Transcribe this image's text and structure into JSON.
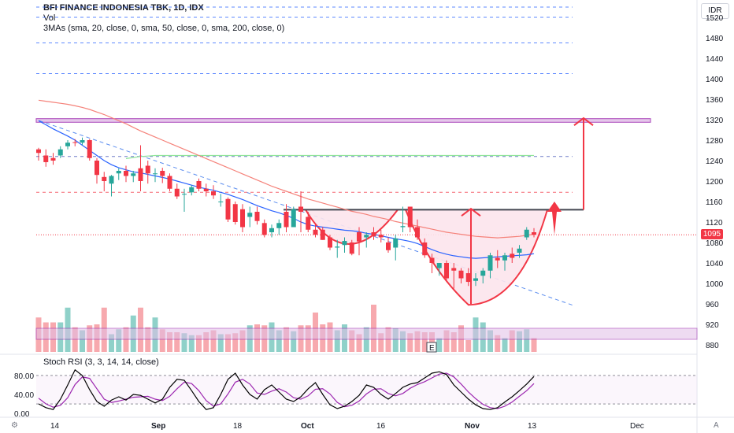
{
  "header": {
    "symbol_line": "BFI FINANCE INDONESIA TBK, 1D, IDX",
    "volume_label": "Vol",
    "mas_label": "3MAs (sma, 20, close, 0, sma, 50, close, 0, sma, 200, close, 0)"
  },
  "currency_badge": "IDR",
  "last_price_label": "1095",
  "earnings_marker": "E",
  "rsi": {
    "title": "Stoch RSI (3, 3, 14, 14, close)",
    "ticks": [
      "80.00",
      "40.00",
      "0.00"
    ]
  },
  "corner_icons": {
    "left": "icon-settings",
    "right": "auto-scale-icon"
  },
  "corner_labels": {
    "left": "",
    "right": "A"
  },
  "chart_data": {
    "type": "candlestick",
    "y_ticks": [
      1520,
      1480,
      1440,
      1400,
      1360,
      1320,
      1280,
      1240,
      1200,
      1160,
      1120,
      1080,
      1040,
      1000,
      960,
      920,
      880
    ],
    "ylim": [
      870,
      1530
    ],
    "x_labels": [
      "14",
      "Sep",
      "18",
      "Oct",
      "16",
      "Nov",
      "13",
      "Dec"
    ],
    "x_label_bold": [
      "Sep",
      "Oct",
      "Nov"
    ],
    "colors": {
      "up": "#26a69a",
      "down": "#f23645",
      "vol_up": "#8fd1c9",
      "vol_down": "#f7a9ae",
      "ma20": "#2962ff",
      "ma50": "#f5827a",
      "ma200": "#90e59a",
      "rsi_k": "#000000",
      "rsi_d": "#9c27b0"
    },
    "candles_ohlc": [
      [
        1262,
        1265,
        1240,
        1255
      ],
      [
        1250,
        1262,
        1228,
        1237
      ],
      [
        1245,
        1255,
        1232,
        1240
      ],
      [
        1250,
        1268,
        1245,
        1262
      ],
      [
        1268,
        1280,
        1262,
        1275
      ],
      [
        1276,
        1282,
        1268,
        1275
      ],
      [
        1275,
        1285,
        1270,
        1280
      ],
      [
        1280,
        1282,
        1240,
        1245
      ],
      [
        1240,
        1245,
        1195,
        1212
      ],
      [
        1208,
        1218,
        1180,
        1200
      ],
      [
        1195,
        1212,
        1170,
        1210
      ],
      [
        1215,
        1225,
        1202,
        1220
      ],
      [
        1220,
        1230,
        1198,
        1210
      ],
      [
        1210,
        1220,
        1198,
        1215
      ],
      [
        1225,
        1270,
        1180,
        1200
      ],
      [
        1230,
        1240,
        1195,
        1215
      ],
      [
        1215,
        1225,
        1198,
        1215
      ],
      [
        1220,
        1226,
        1196,
        1210
      ],
      [
        1210,
        1215,
        1180,
        1185
      ],
      [
        1185,
        1195,
        1165,
        1170
      ],
      [
        1175,
        1185,
        1140,
        1175
      ],
      [
        1178,
        1192,
        1172,
        1188
      ],
      [
        1200,
        1205,
        1180,
        1185
      ],
      [
        1185,
        1195,
        1170,
        1180
      ],
      [
        1180,
        1192,
        1165,
        1172
      ],
      [
        1160,
        1175,
        1150,
        1160
      ],
      [
        1165,
        1168,
        1120,
        1125
      ],
      [
        1155,
        1160,
        1115,
        1120
      ],
      [
        1145,
        1155,
        1100,
        1110
      ],
      [
        1130,
        1150,
        1110,
        1138
      ],
      [
        1140,
        1150,
        1115,
        1122
      ],
      [
        1118,
        1125,
        1090,
        1095
      ],
      [
        1100,
        1115,
        1090,
        1108
      ],
      [
        1108,
        1125,
        1095,
        1118
      ],
      [
        1140,
        1155,
        1100,
        1110
      ],
      [
        1110,
        1150,
        1110,
        1145
      ],
      [
        1150,
        1180,
        1100,
        1140
      ],
      [
        1130,
        1140,
        1100,
        1105
      ],
      [
        1105,
        1115,
        1090,
        1095
      ],
      [
        1105,
        1110,
        1085,
        1085
      ],
      [
        1090,
        1095,
        1065,
        1070
      ],
      [
        1070,
        1085,
        1050,
        1072
      ],
      [
        1075,
        1090,
        1060,
        1083
      ],
      [
        1080,
        1085,
        1055,
        1058
      ],
      [
        1100,
        1110,
        1055,
        1082
      ],
      [
        1090,
        1100,
        1070,
        1095
      ],
      [
        1100,
        1110,
        1085,
        1092
      ],
      [
        1095,
        1105,
        1080,
        1090
      ],
      [
        1080,
        1090,
        1060,
        1065
      ],
      [
        1070,
        1095,
        1045,
        1088
      ],
      [
        1110,
        1150,
        1100,
        1112
      ],
      [
        1150,
        1150,
        1100,
        1110
      ],
      [
        1110,
        1125,
        1085,
        1090
      ],
      [
        1080,
        1088,
        1050,
        1055
      ],
      [
        1050,
        1058,
        1020,
        1040
      ],
      [
        1030,
        1040,
        1015,
        1040
      ],
      [
        1040,
        1045,
        1005,
        1010
      ],
      [
        1030,
        1040,
        990,
        1025
      ],
      [
        1025,
        1030,
        1000,
        1010
      ],
      [
        1020,
        1030,
        995,
        1003
      ],
      [
        1005,
        1020,
        995,
        1010
      ],
      [
        1015,
        1030,
        1000,
        1025
      ],
      [
        1025,
        1060,
        1010,
        1055
      ],
      [
        1050,
        1065,
        1030,
        1045
      ],
      [
        1045,
        1060,
        1025,
        1055
      ],
      [
        1058,
        1070,
        1040,
        1050
      ],
      [
        1060,
        1075,
        1050,
        1068
      ],
      [
        1090,
        1110,
        1085,
        1105
      ],
      [
        1100,
        1108,
        1090,
        1095
      ]
    ],
    "volume": [
      35,
      30,
      30,
      30,
      45,
      25,
      22,
      27,
      28,
      45,
      18,
      23,
      25,
      37,
      45,
      25,
      35,
      23,
      20,
      20,
      19,
      17,
      17,
      20,
      22,
      18,
      18,
      19,
      22,
      27,
      28,
      27,
      30,
      22,
      25,
      21,
      27,
      27,
      40,
      28,
      30,
      22,
      28,
      22,
      18,
      25,
      48,
      19,
      25,
      24,
      21,
      19,
      21,
      20,
      20,
      14,
      22,
      20,
      27,
      12,
      35,
      30,
      22,
      17,
      14,
      22,
      21,
      23,
      14
    ],
    "ma20": [
      1318,
      1310,
      1302,
      1295,
      1288,
      1280,
      1270,
      1260,
      1250,
      1240,
      1232,
      1226,
      1222,
      1218,
      1216,
      1213,
      1210,
      1207,
      1204,
      1200,
      1196,
      1192,
      1188,
      1185,
      1182,
      1178,
      1174,
      1169,
      1164,
      1158,
      1152,
      1147,
      1142,
      1138,
      1133,
      1127,
      1120,
      1115,
      1112,
      1110,
      1108,
      1106,
      1104,
      1103,
      1101,
      1098,
      1096,
      1093,
      1090,
      1087,
      1085,
      1082,
      1078,
      1072,
      1066,
      1061,
      1057,
      1054,
      1052,
      1050,
      1049,
      1050,
      1051,
      1052,
      1053,
      1054,
      1055,
      1056,
      1058
    ],
    "ma50": [
      1358,
      1356,
      1354,
      1352,
      1350,
      1347,
      1344,
      1340,
      1335,
      1330,
      1324,
      1318,
      1312,
      1305,
      1298,
      1292,
      1286,
      1280,
      1274,
      1268,
      1262,
      1256,
      1250,
      1244,
      1238,
      1232,
      1226,
      1220,
      1214,
      1208,
      1202,
      1196,
      1190,
      1185,
      1180,
      1175,
      1170,
      1165,
      1161,
      1157,
      1153,
      1149,
      1145,
      1141,
      1138,
      1135,
      1131,
      1128,
      1125,
      1121,
      1118,
      1115,
      1112,
      1109,
      1106,
      1103,
      1100,
      1098,
      1096,
      1094,
      1092,
      1091,
      1090,
      1089,
      1090,
      1091,
      1092,
      1094,
      1096
    ],
    "ma200": [
      null,
      null,
      null,
      null,
      null,
      null,
      null,
      null,
      null,
      null,
      null,
      null,
      1244,
      1246,
      1248,
      1249,
      1250,
      1250,
      1250,
      1250,
      1250,
      1250,
      1250,
      1250,
      1250,
      1250,
      1250,
      1250,
      1250,
      1250,
      1250,
      1250,
      1250,
      1250,
      1250,
      1250,
      1250,
      1250,
      1250,
      1250,
      1250,
      1250,
      1250,
      1250,
      1250,
      1250,
      1250,
      1250,
      1250,
      1250,
      1250,
      1250,
      1250,
      1250,
      1250,
      1250,
      1250,
      1250,
      1250,
      1250,
      1250,
      1250,
      1250,
      1250,
      1250,
      1250,
      1250,
      1250,
      1250
    ],
    "rsi_k": [
      20,
      12,
      8,
      30,
      60,
      92,
      80,
      50,
      25,
      15,
      28,
      35,
      28,
      40,
      38,
      30,
      22,
      30,
      55,
      72,
      70,
      48,
      25,
      8,
      12,
      40,
      72,
      85,
      60,
      40,
      30,
      50,
      60,
      45,
      30,
      25,
      35,
      52,
      65,
      40,
      18,
      10,
      15,
      25,
      38,
      60,
      55,
      40,
      30,
      42,
      55,
      62,
      65,
      75,
      85,
      88,
      82,
      60,
      45,
      30,
      18,
      10,
      8,
      12,
      24,
      35,
      48,
      62,
      78
    ],
    "rsi_d": [
      32,
      20,
      13,
      17,
      33,
      61,
      77,
      74,
      52,
      30,
      23,
      26,
      30,
      34,
      35,
      36,
      30,
      27,
      36,
      52,
      66,
      63,
      48,
      27,
      15,
      20,
      41,
      66,
      72,
      62,
      43,
      40,
      47,
      52,
      45,
      33,
      30,
      37,
      51,
      52,
      41,
      23,
      14,
      17,
      26,
      41,
      51,
      52,
      42,
      37,
      42,
      53,
      61,
      67,
      75,
      83,
      85,
      77,
      62,
      45,
      31,
      19,
      12,
      10,
      15,
      24,
      36,
      48,
      63
    ]
  },
  "annotations": {
    "horizontal_dashed_levels": [
      1540,
      1520,
      1470,
      1410,
      1248,
      1178
    ],
    "dotted_price_line": 1095,
    "support_box": [
      1318,
      1322
    ],
    "neckline": 1144,
    "volume_box_top_pct": 0.85
  }
}
